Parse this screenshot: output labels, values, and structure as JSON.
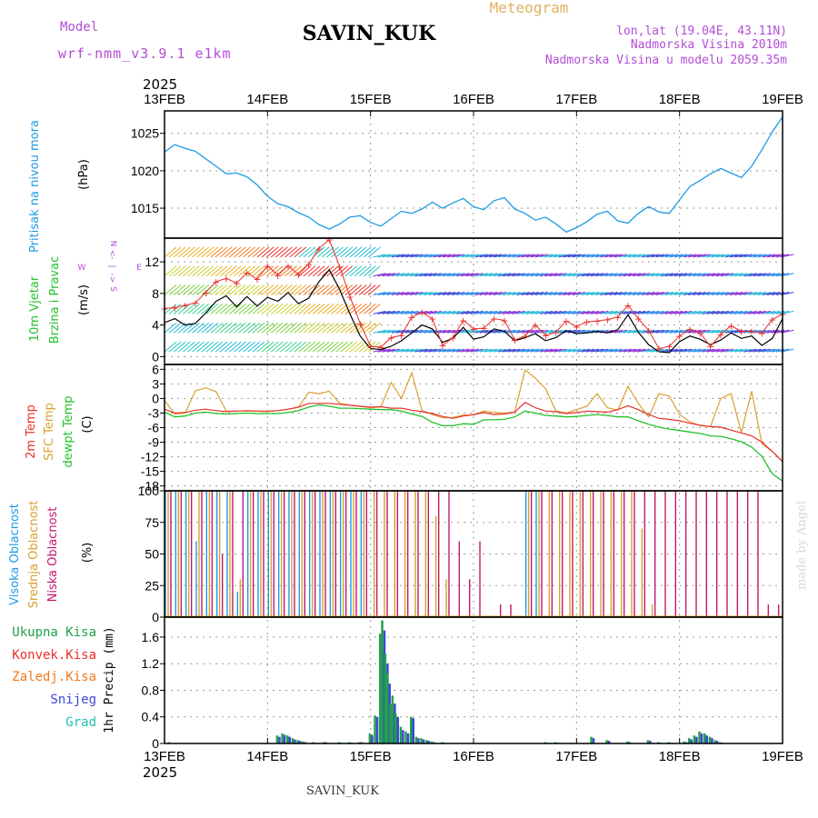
{
  "header": {
    "model_label": "Model",
    "model_name": "wrf-nmm_v3.9.1 e1km",
    "station": "SAVIN_KUK",
    "product": "Meteogram",
    "location_lines": [
      "lon,lat (19.04E, 43.11N)",
      "Nadmorska Visina 2010m",
      "Nadmorska Visina u modelu 2059.35m"
    ],
    "year": "2025",
    "footer_station": "SAVIN_KUK",
    "watermark": "made by Angel"
  },
  "colors": {
    "pressure": "#1e9be3",
    "temp2m": "#e8302c",
    "sfc": "#d9a130",
    "dewpt": "#22c22a",
    "high_cloud": "#1e9be3",
    "mid_cloud": "#d9a130",
    "low_cloud": "#c2186b",
    "total_precip": "#22a04a",
    "conv_precip": "#e8302c",
    "frozen_precip": "#ee7a1e",
    "snow": "#3c47d6",
    "hail": "#20c0b0",
    "wind_speed": "#000000",
    "gust": "#e8302c",
    "compass": "#b34dd6"
  },
  "chart_data": [
    {
      "type": "line",
      "panel": "pressure",
      "ylabel_lines": [
        "Pritisak na nivou mora"
      ],
      "unit": "(hPa)",
      "x_ticks": [
        "13FEB",
        "14FEB",
        "15FEB",
        "16FEB",
        "17FEB",
        "18FEB",
        "19FEB"
      ],
      "x": [
        0,
        0.1,
        0.2,
        0.3,
        0.4,
        0.5,
        0.6,
        0.7,
        0.8,
        0.9,
        1.0,
        1.1,
        1.2,
        1.3,
        1.4,
        1.5,
        1.6,
        1.7,
        1.8,
        1.9,
        2.0,
        2.1,
        2.2,
        2.3,
        2.4,
        2.5,
        2.6,
        2.7,
        2.8,
        2.9,
        3.0,
        3.1,
        3.2,
        3.3,
        3.4,
        3.5,
        3.6,
        3.7,
        3.8,
        3.9,
        4.0,
        4.1,
        4.2,
        4.3,
        4.4,
        4.5,
        4.6,
        4.7,
        4.8,
        4.9,
        5.0,
        5.1,
        5.2,
        5.3,
        5.4,
        5.5,
        5.6,
        5.7,
        5.8,
        5.9,
        6.0
      ],
      "y": [
        1022.5,
        1023.5,
        1023.0,
        1022.6,
        1021.6,
        1020.6,
        1019.6,
        1019.7,
        1019.2,
        1018.1,
        1016.6,
        1015.6,
        1015.2,
        1014.4,
        1013.8,
        1012.8,
        1012.2,
        1012.9,
        1013.8,
        1014.0,
        1013.1,
        1012.6,
        1013.6,
        1014.6,
        1014.3,
        1014.9,
        1015.8,
        1015.0,
        1015.7,
        1016.3,
        1015.2,
        1014.8,
        1016.0,
        1016.4,
        1014.9,
        1014.3,
        1013.4,
        1013.8,
        1012.9,
        1011.8,
        1012.4,
        1013.2,
        1014.2,
        1014.6,
        1013.3,
        1013.0,
        1014.3,
        1015.2,
        1014.5,
        1014.3,
        1016.1,
        1017.9,
        1018.7,
        1019.6,
        1020.3,
        1019.7,
        1019.1,
        1020.6,
        1022.8,
        1025.2,
        1027.2
      ],
      "yticks": [
        1015,
        1020,
        1025
      ],
      "ylim": [
        1011,
        1028
      ]
    },
    {
      "type": "line",
      "panel": "wind",
      "ylabel_lines": [
        "10m Vjetar",
        "Brzina i Pravac"
      ],
      "unit": "(m/s)",
      "compass": [
        "N",
        "<-",
        "|",
        "->",
        "S",
        "W",
        "E"
      ],
      "yticks": [
        0,
        4,
        8,
        12
      ],
      "ylim": [
        -1,
        15
      ],
      "x": [
        0,
        0.1,
        0.2,
        0.3,
        0.4,
        0.5,
        0.6,
        0.7,
        0.8,
        0.9,
        1.0,
        1.1,
        1.2,
        1.3,
        1.4,
        1.5,
        1.6,
        1.7,
        1.8,
        1.9,
        2.0,
        2.1,
        2.2,
        2.3,
        2.4,
        2.5,
        2.6,
        2.7,
        2.8,
        2.9,
        3.0,
        3.1,
        3.2,
        3.3,
        3.4,
        3.5,
        3.6,
        3.7,
        3.8,
        3.9,
        4.0,
        4.1,
        4.2,
        4.3,
        4.4,
        4.5,
        4.6,
        4.7,
        4.8,
        4.9,
        5.0,
        5.1,
        5.2,
        5.3,
        5.4,
        5.5,
        5.6,
        5.7,
        5.8,
        5.9,
        6.0
      ],
      "series": [
        {
          "name": "speed",
          "values": [
            4.3,
            4.8,
            4.0,
            4.2,
            5.5,
            7.0,
            7.7,
            6.3,
            7.6,
            6.4,
            7.5,
            7.0,
            8.1,
            6.7,
            7.4,
            9.5,
            11.0,
            8.5,
            5.4,
            2.6,
            1.0,
            0.9,
            1.3,
            2.0,
            3.0,
            4.0,
            3.5,
            1.8,
            2.3,
            3.7,
            2.2,
            2.5,
            3.5,
            3.2,
            2.0,
            2.4,
            2.9,
            2.0,
            2.4,
            3.3,
            2.9,
            3.0,
            3.2,
            3.0,
            3.4,
            5.3,
            3.1,
            1.5,
            0.6,
            0.5,
            1.9,
            2.6,
            2.2,
            1.5,
            2.1,
            3.0,
            2.3,
            2.6,
            1.4,
            2.3,
            4.8
          ]
        },
        {
          "name": "gust",
          "values": [
            6.1,
            6.2,
            6.5,
            6.8,
            8.1,
            9.5,
            9.9,
            9.3,
            10.6,
            9.8,
            11.5,
            10.3,
            11.5,
            10.4,
            11.7,
            13.7,
            14.8,
            11.4,
            7.6,
            4.2,
            1.3,
            1.2,
            2.4,
            2.7,
            5.0,
            5.6,
            4.8,
            1.4,
            2.4,
            4.6,
            3.5,
            3.6,
            4.8,
            4.6,
            2.1,
            2.6,
            4.0,
            2.7,
            3.1,
            4.5,
            3.8,
            4.4,
            4.5,
            4.7,
            5.0,
            6.5,
            4.8,
            3.3,
            1.0,
            1.3,
            2.6,
            3.5,
            3.0,
            1.3,
            2.8,
            3.9,
            3.2,
            3.2,
            3.0,
            4.7,
            5.4
          ]
        }
      ]
    },
    {
      "type": "line",
      "panel": "temperature",
      "ylabel_lines": [
        "2m Temp",
        "SFC Temp",
        "dewpt Temp"
      ],
      "unit": "(C)",
      "yticks": [
        -18,
        -15,
        -12,
        -9,
        -6,
        -3,
        0,
        3,
        6
      ],
      "ylim": [
        -19,
        7
      ],
      "x": [
        0,
        0.1,
        0.2,
        0.3,
        0.4,
        0.5,
        0.6,
        0.7,
        0.8,
        0.9,
        1.0,
        1.1,
        1.2,
        1.3,
        1.4,
        1.5,
        1.6,
        1.7,
        1.8,
        1.9,
        2.0,
        2.1,
        2.2,
        2.3,
        2.4,
        2.5,
        2.6,
        2.7,
        2.8,
        2.9,
        3.0,
        3.1,
        3.2,
        3.3,
        3.4,
        3.5,
        3.6,
        3.7,
        3.8,
        3.9,
        4.0,
        4.1,
        4.2,
        4.3,
        4.4,
        4.5,
        4.6,
        4.7,
        4.8,
        4.9,
        5.0,
        5.1,
        5.2,
        5.3,
        5.4,
        5.5,
        5.6,
        5.7,
        5.8,
        5.9,
        6.0
      ],
      "series": [
        {
          "name": "2m Temp",
          "values": [
            -2.2,
            -3.0,
            -2.9,
            -2.4,
            -2.2,
            -2.5,
            -2.7,
            -2.6,
            -2.5,
            -2.6,
            -2.6,
            -2.5,
            -2.2,
            -1.8,
            -1.0,
            -1.0,
            -1.0,
            -1.2,
            -1.4,
            -1.6,
            -1.8,
            -1.7,
            -2.0,
            -2.0,
            -2.4,
            -2.7,
            -3.1,
            -3.7,
            -4.1,
            -3.6,
            -3.3,
            -2.9,
            -3.3,
            -3.2,
            -2.8,
            -0.8,
            -1.9,
            -2.6,
            -2.7,
            -3.1,
            -2.9,
            -2.6,
            -2.7,
            -2.8,
            -2.3,
            -1.5,
            -2.3,
            -3.3,
            -4.1,
            -4.3,
            -4.6,
            -5.1,
            -5.5,
            -5.8,
            -5.9,
            -6.5,
            -7.1,
            -7.7,
            -9.0,
            -10.9,
            -13.0
          ]
        },
        {
          "name": "SFC Temp",
          "values": [
            -0.4,
            -3.2,
            -3.0,
            1.6,
            2.2,
            1.4,
            -2.6,
            -2.6,
            -2.6,
            -2.6,
            -2.7,
            -2.5,
            -2.2,
            -1.8,
            1.3,
            1.0,
            1.5,
            -1.0,
            -1.4,
            -1.6,
            -1.9,
            -1.7,
            3.3,
            0.0,
            5.3,
            -2.5,
            -3.3,
            -4.0,
            -3.9,
            -3.4,
            -3.4,
            -2.6,
            -2.9,
            -3.0,
            -2.8,
            5.9,
            4.2,
            2.0,
            -2.6,
            -3.0,
            -2.3,
            -1.6,
            1.0,
            -1.9,
            -2.4,
            2.5,
            -1.0,
            -3.8,
            1.0,
            0.5,
            -3.3,
            -4.8,
            -5.6,
            -5.8,
            0.0,
            1.0,
            -7.0,
            1.5,
            -9.3,
            -10.9,
            -12.9
          ]
        },
        {
          "name": "dewpt Temp",
          "values": [
            -2.8,
            -3.8,
            -3.6,
            -3.0,
            -2.8,
            -3.1,
            -3.2,
            -3.1,
            -3.0,
            -3.1,
            -3.1,
            -3.1,
            -2.9,
            -2.5,
            -1.8,
            -1.3,
            -1.6,
            -2.0,
            -2.0,
            -2.1,
            -2.2,
            -2.3,
            -2.3,
            -2.6,
            -3.2,
            -3.7,
            -4.9,
            -5.6,
            -5.6,
            -5.2,
            -5.3,
            -4.4,
            -4.4,
            -4.3,
            -3.8,
            -2.6,
            -3.0,
            -3.5,
            -3.6,
            -3.8,
            -3.7,
            -3.5,
            -3.3,
            -3.5,
            -3.8,
            -3.8,
            -4.6,
            -5.3,
            -5.9,
            -6.3,
            -6.6,
            -6.9,
            -7.2,
            -7.7,
            -7.8,
            -8.3,
            -8.9,
            -10.0,
            -11.9,
            -15.5,
            -17.0
          ]
        }
      ]
    },
    {
      "type": "bar",
      "panel": "cloud",
      "ylabel_lines": [
        "Visoka Oblacnost",
        "Srednja Oblacnost",
        "Niska Oblacnost"
      ],
      "unit": "(%)",
      "yticks": [
        0,
        25,
        50,
        75,
        100
      ],
      "ylim": [
        0,
        100
      ],
      "x": [
        0.0,
        0.1,
        0.2,
        0.3,
        0.4,
        0.5,
        0.6,
        0.7,
        0.8,
        0.9,
        1.0,
        1.1,
        1.2,
        1.3,
        1.4,
        1.5,
        1.6,
        1.7,
        1.8,
        1.9,
        2.0,
        2.1,
        2.2,
        2.3,
        2.4,
        2.5,
        2.6,
        2.7,
        2.8,
        2.9,
        3.0,
        3.1,
        3.2,
        3.3,
        3.4,
        3.5,
        3.6,
        3.7,
        3.8,
        3.9,
        4.0,
        4.1,
        4.2,
        4.3,
        4.4,
        4.5,
        4.6,
        4.7,
        4.8,
        4.9,
        5.0,
        5.1,
        5.2,
        5.3,
        5.4,
        5.5,
        5.6,
        5.7,
        5.8,
        5.9
      ],
      "series": [
        {
          "name": "Visoka Oblacnost",
          "values": [
            100,
            100,
            100,
            60,
            100,
            100,
            100,
            20,
            100,
            100,
            100,
            100,
            100,
            100,
            100,
            100,
            100,
            100,
            100,
            100,
            0,
            0,
            0,
            0,
            0,
            0,
            0,
            0,
            0,
            0,
            0,
            0,
            0,
            0,
            0,
            100,
            100,
            0,
            0,
            0,
            0,
            0,
            0,
            0,
            0,
            0,
            0,
            0,
            0,
            0,
            0,
            0,
            0,
            0,
            0,
            0,
            0,
            0,
            0,
            0
          ]
        },
        {
          "name": "Srednja Oblacnost",
          "values": [
            100,
            100,
            100,
            100,
            100,
            100,
            100,
            30,
            100,
            100,
            100,
            100,
            100,
            100,
            100,
            100,
            100,
            100,
            100,
            100,
            100,
            100,
            100,
            100,
            100,
            100,
            80,
            30,
            0,
            0,
            0,
            0,
            0,
            0,
            0,
            100,
            100,
            100,
            100,
            100,
            100,
            100,
            100,
            100,
            100,
            100,
            70,
            10,
            0,
            0,
            0,
            0,
            0,
            0,
            0,
            0,
            0,
            0,
            0,
            0
          ]
        },
        {
          "name": "Niska Oblacnost",
          "values": [
            100,
            100,
            100,
            100,
            100,
            50,
            100,
            100,
            100,
            100,
            100,
            100,
            100,
            100,
            100,
            100,
            100,
            100,
            100,
            100,
            100,
            100,
            100,
            100,
            100,
            100,
            100,
            100,
            60,
            30,
            60,
            0,
            10,
            10,
            0,
            100,
            100,
            100,
            100,
            100,
            100,
            100,
            100,
            100,
            100,
            100,
            100,
            100,
            100,
            100,
            100,
            100,
            100,
            100,
            100,
            100,
            100,
            100,
            10,
            10
          ]
        }
      ]
    },
    {
      "type": "bar",
      "panel": "precip",
      "legend": [
        "Ukupna Kisa",
        "Konvek.Kisa",
        "Zaledj.Kisa",
        "Snijeg",
        "Grad"
      ],
      "ylabel": "1hr Precip (mm)",
      "yticks": [
        0,
        0.4,
        0.8,
        1.2,
        1.6
      ],
      "ylim": [
        0,
        1.9
      ],
      "x": [
        0.05,
        1.1,
        1.15,
        1.2,
        1.25,
        1.3,
        1.35,
        1.45,
        1.55,
        1.7,
        1.8,
        1.9,
        2.0,
        2.05,
        2.1,
        2.12,
        2.15,
        2.17,
        2.2,
        2.22,
        2.25,
        2.3,
        2.35,
        2.4,
        2.45,
        2.5,
        2.55,
        2.6,
        2.7,
        3.7,
        3.8,
        4.15,
        4.3,
        4.5,
        4.7,
        4.8,
        4.9,
        5.05,
        5.1,
        5.15,
        5.2,
        5.25,
        5.3,
        5.35,
        5.4
      ],
      "series": [
        {
          "name": "Ukupna Kisa",
          "values": [
            0.02,
            0.12,
            0.15,
            0.12,
            0.08,
            0.05,
            0.03,
            0.02,
            0.02,
            0.02,
            0.02,
            0.02,
            0.15,
            0.42,
            1.65,
            1.85,
            1.35,
            1.05,
            0.6,
            0.72,
            0.45,
            0.25,
            0.18,
            0.4,
            0.1,
            0.08,
            0.05,
            0.03,
            0.02,
            0.02,
            0.02,
            0.1,
            0.05,
            0.03,
            0.05,
            0.02,
            0.02,
            0.03,
            0.08,
            0.12,
            0.18,
            0.15,
            0.1,
            0.05,
            0.02
          ]
        },
        {
          "name": "Snijeg",
          "values": [
            0.0,
            0.1,
            0.13,
            0.1,
            0.06,
            0.04,
            0.02,
            0.01,
            0.02,
            0.01,
            0.01,
            0.02,
            0.13,
            0.4,
            1.4,
            1.7,
            1.2,
            0.9,
            0.5,
            0.6,
            0.4,
            0.2,
            0.15,
            0.38,
            0.08,
            0.06,
            0.04,
            0.02,
            0.01,
            0.01,
            0.01,
            0.08,
            0.04,
            0.02,
            0.04,
            0.01,
            0.01,
            0.02,
            0.06,
            0.1,
            0.15,
            0.12,
            0.08,
            0.04,
            0.01
          ]
        }
      ]
    }
  ]
}
